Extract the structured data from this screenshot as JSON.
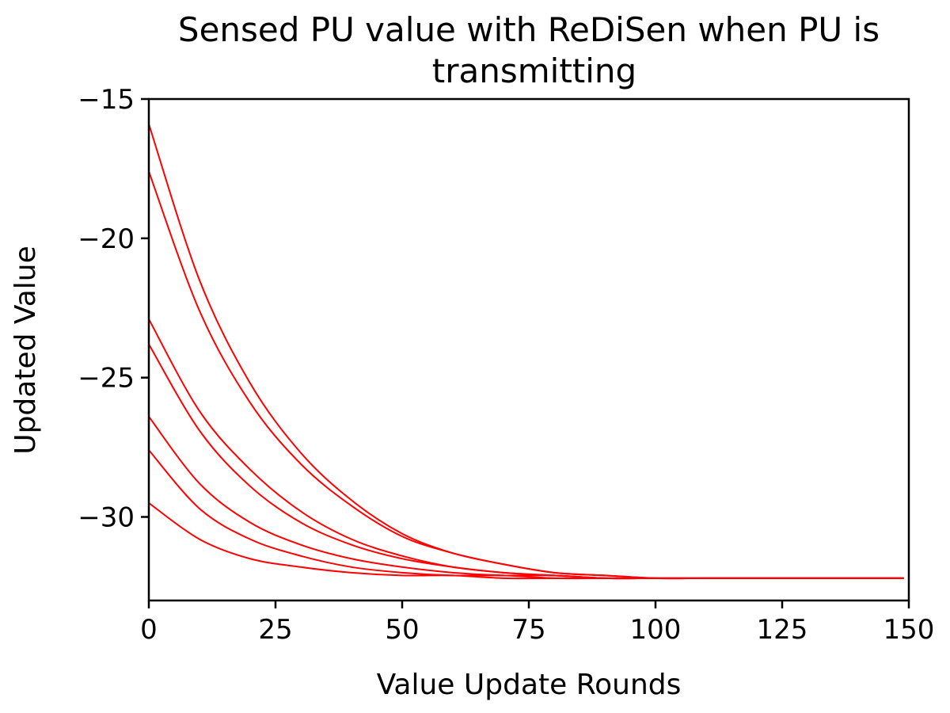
{
  "chart_data": {
    "type": "line",
    "title_lines": [
      "Sensed PU value with ReDiSen when PU is",
      "transmitting"
    ],
    "xlabel": "Value Update Rounds",
    "ylabel": "Updated Value",
    "xlim": [
      0,
      150
    ],
    "ylim": [
      -33,
      -15
    ],
    "xticks": [
      0,
      25,
      50,
      75,
      100,
      125,
      150
    ],
    "yticks": [
      -15,
      -20,
      -25,
      -30
    ],
    "ytick_labels": [
      "−15",
      "−20",
      "−25",
      "−30"
    ],
    "grid": false,
    "line_color": "#ff0000",
    "x": [
      0,
      10,
      20,
      30,
      40,
      50,
      60,
      70,
      80,
      90,
      100,
      110,
      120,
      130,
      140,
      149
    ],
    "series": [
      {
        "values": [
          -15.9,
          -21.5,
          -25.2,
          -27.7,
          -29.4,
          -30.6,
          -31.3,
          -31.7,
          -32.0,
          -32.1,
          -32.2,
          -32.2,
          -32.2,
          -32.2,
          -32.2,
          -32.2
        ]
      },
      {
        "values": [
          -17.6,
          -22.6,
          -25.9,
          -28.1,
          -29.6,
          -30.7,
          -31.3,
          -31.7,
          -32.0,
          -32.1,
          -32.2,
          -32.2,
          -32.2,
          -32.2,
          -32.2,
          -32.2
        ]
      },
      {
        "values": [
          -22.9,
          -26.2,
          -28.3,
          -29.8,
          -30.8,
          -31.4,
          -31.8,
          -32.0,
          -32.1,
          -32.2,
          -32.2,
          -32.2,
          -32.2,
          -32.2,
          -32.2,
          -32.2
        ]
      },
      {
        "values": [
          -23.8,
          -26.9,
          -28.9,
          -30.2,
          -31.0,
          -31.5,
          -31.8,
          -32.0,
          -32.1,
          -32.2,
          -32.2,
          -32.2,
          -32.2,
          -32.2,
          -32.2,
          -32.2
        ]
      },
      {
        "values": [
          -26.4,
          -28.8,
          -30.2,
          -31.0,
          -31.5,
          -31.8,
          -32.0,
          -32.1,
          -32.1,
          -32.2,
          -32.2,
          -32.2,
          -32.2,
          -32.2,
          -32.2,
          -32.2
        ]
      },
      {
        "values": [
          -27.6,
          -29.7,
          -30.8,
          -31.4,
          -31.8,
          -32.0,
          -32.1,
          -32.1,
          -32.2,
          -32.2,
          -32.2,
          -32.2,
          -32.2,
          -32.2,
          -32.2,
          -32.2
        ]
      },
      {
        "values": [
          -29.5,
          -30.8,
          -31.5,
          -31.8,
          -32.0,
          -32.1,
          -32.1,
          -32.2,
          -32.2,
          -32.2,
          -32.2,
          -32.2,
          -32.2,
          -32.2,
          -32.2,
          -32.2
        ]
      }
    ]
  }
}
